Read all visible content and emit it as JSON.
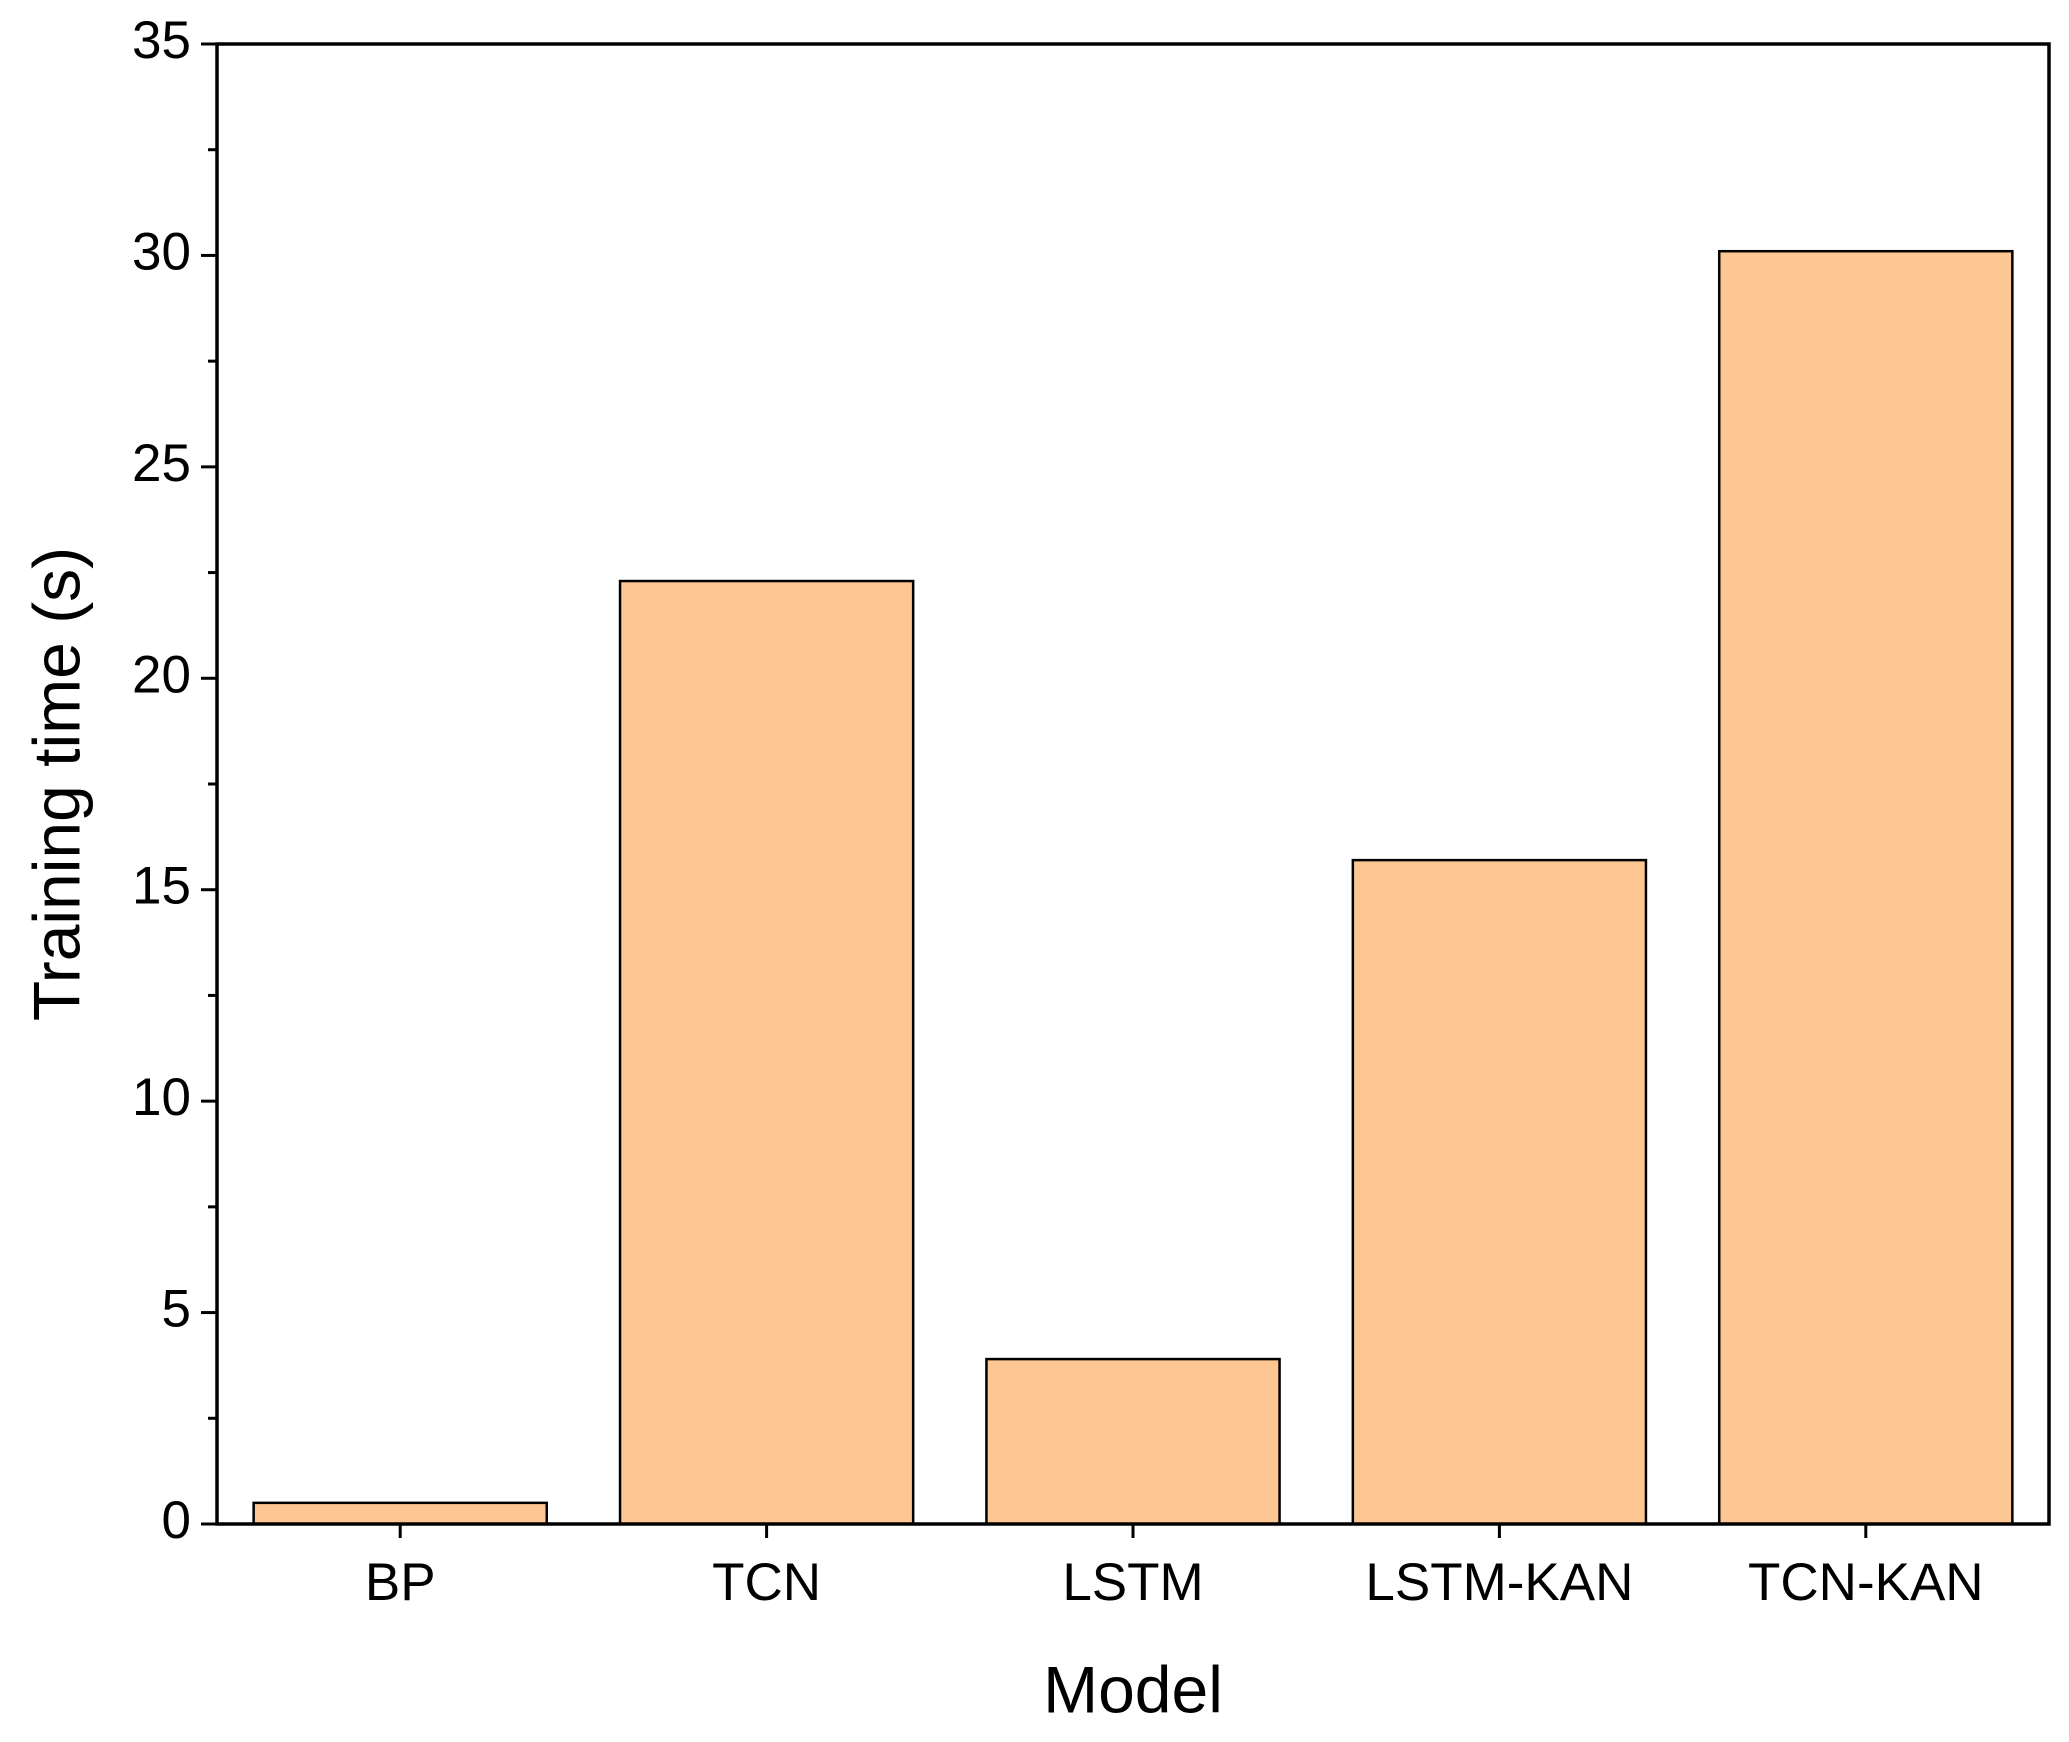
{
  "chart_data": {
    "type": "bar",
    "x_label": "Model",
    "y_label": "Training time (s)",
    "categories": [
      "BP",
      "TCN",
      "LSTM",
      "LSTM-KAN",
      "TCN-KAN"
    ],
    "values": [
      0.5,
      22.3,
      3.9,
      15.7,
      30.1
    ],
    "color": "#fdc794",
    "ylim": [
      0,
      35
    ],
    "yticks": [
      0,
      5,
      10,
      15,
      20,
      25,
      30,
      35
    ],
    "grid": false
  }
}
